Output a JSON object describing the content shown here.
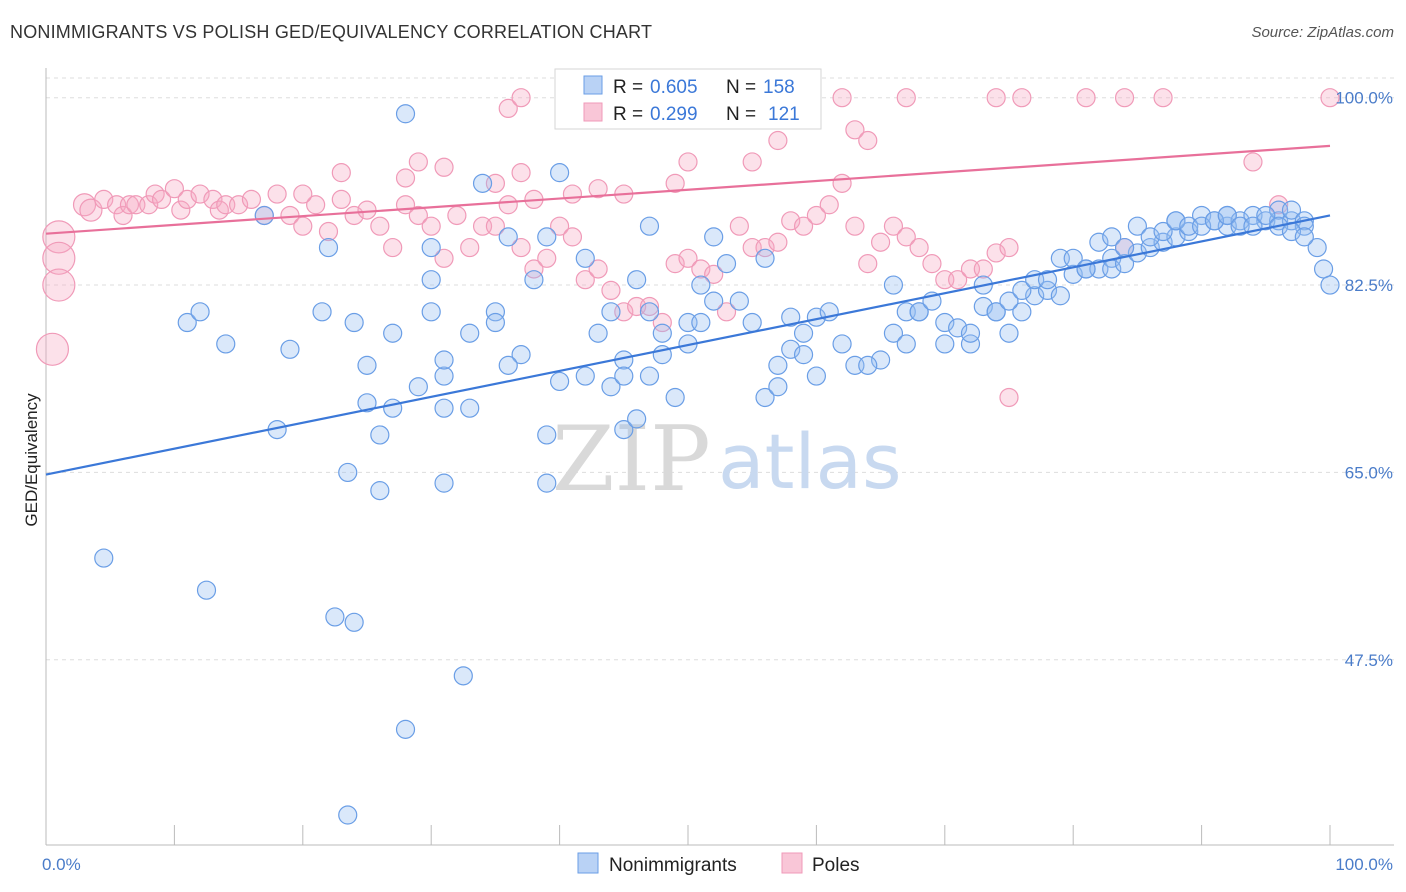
{
  "header": {
    "title": "NONIMMIGRANTS VS POLISH GED/EQUIVALENCY CORRELATION CHART",
    "source": "Source: ZipAtlas.com"
  },
  "watermark": {
    "zip": "ZIP",
    "atlas": "atlas"
  },
  "colors": {
    "blue": "#3b78d8",
    "blue_fill": "rgba(150,190,240,0.35)",
    "blue_stroke": "#6a9ee6",
    "pink": "#e8709a",
    "pink_fill": "rgba(245,170,195,0.35)",
    "pink_stroke": "#f09ab8",
    "grid": "#dddddd"
  },
  "legend_top": {
    "rows": [
      {
        "r_label": "R =",
        "r_value": "0.605",
        "n_label": "N =",
        "n_value": "158"
      },
      {
        "r_label": "R =",
        "r_value": "0.299",
        "n_label": "N =",
        "n_value": "121"
      }
    ]
  },
  "legend_bottom": {
    "items": [
      "Nonimmigrants",
      "Poles"
    ]
  },
  "chart_data": {
    "type": "scatter",
    "xlabel": "",
    "ylabel": "GED/Equivalency",
    "xlim": [
      0,
      100
    ],
    "ylim": [
      30.2,
      102.4
    ],
    "x_tick_labels": [
      "0.0%",
      "100.0%"
    ],
    "y_ticks": [
      47.5,
      65.0,
      82.5,
      100.0
    ],
    "y_tick_labels": [
      "47.5%",
      "65.0%",
      "82.5%",
      "100.0%"
    ],
    "grid": true,
    "series": [
      {
        "name": "Nonimmigrants",
        "trend": [
          [
            0,
            64.8
          ],
          [
            100,
            89.0
          ]
        ],
        "points": [
          [
            28,
            98.5
          ],
          [
            34,
            92
          ],
          [
            40,
            93
          ],
          [
            22,
            86
          ],
          [
            11,
            79
          ],
          [
            19,
            76.5
          ],
          [
            25,
            75
          ],
          [
            27,
            78
          ],
          [
            30,
            80
          ],
          [
            30,
            83
          ],
          [
            31,
            71
          ],
          [
            31,
            74
          ],
          [
            33,
            71
          ],
          [
            27,
            71
          ],
          [
            26,
            68.5
          ],
          [
            25,
            71.5
          ],
          [
            23.5,
            65
          ],
          [
            26,
            63.3
          ],
          [
            31,
            64
          ],
          [
            39,
            68.5
          ],
          [
            40,
            73.5
          ],
          [
            42,
            74
          ],
          [
            44,
            73
          ],
          [
            45,
            75.5
          ],
          [
            47,
            80
          ],
          [
            48,
            78
          ],
          [
            50,
            79
          ],
          [
            51,
            82.5
          ],
          [
            53,
            84.5
          ],
          [
            54,
            81
          ],
          [
            57,
            75
          ],
          [
            58,
            79.5
          ],
          [
            60,
            79.5
          ],
          [
            62,
            77
          ],
          [
            65,
            75.5
          ],
          [
            66,
            82.5
          ],
          [
            67,
            80
          ],
          [
            68,
            80
          ],
          [
            70,
            77
          ],
          [
            70,
            79
          ],
          [
            72,
            77
          ],
          [
            73,
            80.5
          ],
          [
            74,
            80
          ],
          [
            75,
            78
          ],
          [
            76,
            80
          ],
          [
            77,
            81.5
          ],
          [
            78,
            82
          ],
          [
            79,
            81.5
          ],
          [
            80,
            83.5
          ],
          [
            81,
            84
          ],
          [
            82,
            84
          ],
          [
            83,
            85
          ],
          [
            83,
            84
          ],
          [
            84,
            84.5
          ],
          [
            85,
            85.5
          ],
          [
            86,
            86
          ],
          [
            87,
            86.5
          ],
          [
            88,
            87
          ],
          [
            88,
            88.5
          ],
          [
            89,
            87.5
          ],
          [
            90,
            89
          ],
          [
            91,
            88.5
          ],
          [
            92,
            88
          ],
          [
            92,
            89
          ],
          [
            93,
            88.5
          ],
          [
            94,
            89
          ],
          [
            95,
            88.5
          ],
          [
            96,
            88.5
          ],
          [
            96,
            89.5
          ],
          [
            97,
            88.5
          ],
          [
            97,
            89.5
          ],
          [
            98,
            88.5
          ],
          [
            98,
            88
          ],
          [
            99,
            86
          ],
          [
            99.5,
            84
          ],
          [
            100,
            82.5
          ],
          [
            17,
            89
          ],
          [
            12,
            80
          ],
          [
            38,
            83
          ],
          [
            35,
            80
          ],
          [
            37,
            76
          ],
          [
            39,
            87
          ],
          [
            42,
            85
          ],
          [
            43,
            78
          ],
          [
            45,
            74
          ],
          [
            46,
            83
          ],
          [
            47,
            88
          ],
          [
            48,
            76
          ],
          [
            49,
            72
          ],
          [
            50,
            77
          ],
          [
            51,
            79
          ],
          [
            52,
            81
          ],
          [
            55,
            79
          ],
          [
            56,
            85
          ],
          [
            58,
            76.5
          ],
          [
            59,
            76
          ],
          [
            60,
            74
          ],
          [
            61,
            80
          ],
          [
            63,
            75
          ],
          [
            64,
            75
          ],
          [
            66,
            78
          ],
          [
            67,
            77
          ],
          [
            68,
            80
          ],
          [
            69,
            81
          ],
          [
            71,
            78.5
          ],
          [
            72,
            78
          ],
          [
            73,
            82.5
          ],
          [
            74,
            80
          ],
          [
            75,
            81
          ],
          [
            76,
            82
          ],
          [
            77,
            83
          ],
          [
            78,
            83
          ],
          [
            79,
            85
          ],
          [
            80,
            85
          ],
          [
            81,
            84
          ],
          [
            82,
            86.5
          ],
          [
            83,
            87
          ],
          [
            84,
            86
          ],
          [
            85,
            88
          ],
          [
            86,
            87
          ],
          [
            87,
            87.5
          ],
          [
            88,
            88.5
          ],
          [
            89,
            88
          ],
          [
            90,
            88
          ],
          [
            91,
            88.5
          ],
          [
            92,
            89
          ],
          [
            93,
            88
          ],
          [
            94,
            88
          ],
          [
            95,
            89
          ],
          [
            96,
            88
          ],
          [
            97,
            87.5
          ],
          [
            98,
            87
          ],
          [
            4.5,
            57
          ],
          [
            12.5,
            54
          ],
          [
            22.5,
            51.5
          ],
          [
            24,
            51
          ],
          [
            32.5,
            46
          ],
          [
            28,
            41
          ],
          [
            23.5,
            33
          ],
          [
            39,
            64
          ],
          [
            45,
            69
          ],
          [
            47,
            74
          ],
          [
            33,
            78
          ],
          [
            36,
            75
          ],
          [
            44,
            80
          ],
          [
            30,
            86
          ],
          [
            36,
            87
          ],
          [
            29,
            73
          ],
          [
            31,
            75.5
          ],
          [
            35,
            79
          ],
          [
            46,
            70
          ],
          [
            52,
            87
          ],
          [
            56,
            72
          ],
          [
            57,
            73
          ],
          [
            59,
            78
          ],
          [
            24,
            79
          ],
          [
            21.5,
            80
          ],
          [
            18,
            69
          ],
          [
            14,
            77
          ]
        ]
      },
      {
        "name": "Poles",
        "trend": [
          [
            0,
            87.3
          ],
          [
            100,
            95.5
          ]
        ],
        "points": [
          [
            1,
            87
          ],
          [
            1,
            85
          ],
          [
            1,
            82.5
          ],
          [
            0.5,
            76.5
          ],
          [
            3,
            90
          ],
          [
            3.5,
            89.5
          ],
          [
            4.5,
            90.5
          ],
          [
            5.5,
            90
          ],
          [
            6,
            89
          ],
          [
            6.5,
            90
          ],
          [
            7,
            90
          ],
          [
            8,
            90
          ],
          [
            8.5,
            91
          ],
          [
            9,
            90.5
          ],
          [
            10,
            91.5
          ],
          [
            10.5,
            89.5
          ],
          [
            11,
            90.5
          ],
          [
            12,
            91
          ],
          [
            13,
            90.5
          ],
          [
            13.5,
            89.5
          ],
          [
            14,
            90
          ],
          [
            15,
            90
          ],
          [
            16,
            90.5
          ],
          [
            17,
            89
          ],
          [
            18,
            91
          ],
          [
            19,
            89
          ],
          [
            20,
            88
          ],
          [
            21,
            90
          ],
          [
            22,
            87.5
          ],
          [
            23,
            90.5
          ],
          [
            24,
            89
          ],
          [
            25,
            89.5
          ],
          [
            26,
            88
          ],
          [
            27,
            86
          ],
          [
            28,
            90
          ],
          [
            29,
            89
          ],
          [
            30,
            88
          ],
          [
            31,
            85
          ],
          [
            32,
            89
          ],
          [
            33,
            86
          ],
          [
            34,
            88
          ],
          [
            35,
            88
          ],
          [
            36,
            90
          ],
          [
            37,
            86
          ],
          [
            38,
            84
          ],
          [
            39,
            85
          ],
          [
            40,
            88
          ],
          [
            41,
            87
          ],
          [
            42,
            83
          ],
          [
            43,
            84
          ],
          [
            44,
            82
          ],
          [
            45,
            80
          ],
          [
            46,
            80.5
          ],
          [
            47,
            80.5
          ],
          [
            48,
            79
          ],
          [
            49,
            84.5
          ],
          [
            50,
            85
          ],
          [
            51,
            84
          ],
          [
            52,
            83.5
          ],
          [
            53,
            80
          ],
          [
            54,
            88
          ],
          [
            55,
            86
          ],
          [
            56,
            86
          ],
          [
            57,
            86.5
          ],
          [
            58,
            88.5
          ],
          [
            59,
            88
          ],
          [
            60,
            89
          ],
          [
            61,
            90
          ],
          [
            62,
            92
          ],
          [
            63,
            88
          ],
          [
            64,
            84.5
          ],
          [
            65,
            86.5
          ],
          [
            66,
            88
          ],
          [
            67,
            87
          ],
          [
            68,
            86
          ],
          [
            69,
            84.5
          ],
          [
            70,
            83
          ],
          [
            71,
            83
          ],
          [
            72,
            84
          ],
          [
            73,
            84
          ],
          [
            74,
            85.5
          ],
          [
            75,
            86
          ],
          [
            20,
            91
          ],
          [
            23,
            93
          ],
          [
            28,
            92.5
          ],
          [
            29,
            94
          ],
          [
            31,
            93.5
          ],
          [
            35,
            92
          ],
          [
            37,
            93
          ],
          [
            38,
            90.5
          ],
          [
            41,
            91
          ],
          [
            43,
            91.5
          ],
          [
            45,
            91
          ],
          [
            49,
            92
          ],
          [
            50,
            94
          ],
          [
            55,
            94
          ],
          [
            57,
            96
          ],
          [
            63,
            97
          ],
          [
            64,
            96
          ],
          [
            36,
            99
          ],
          [
            37,
            100
          ],
          [
            44,
            100
          ],
          [
            51,
            100
          ],
          [
            52,
            100
          ],
          [
            58,
            100
          ],
          [
            62,
            100
          ],
          [
            67,
            100
          ],
          [
            74,
            100
          ],
          [
            76,
            100
          ],
          [
            81,
            100
          ],
          [
            84,
            100
          ],
          [
            87,
            100
          ],
          [
            94,
            94
          ],
          [
            96,
            90
          ],
          [
            100,
            100
          ],
          [
            84,
            86
          ],
          [
            75,
            72
          ]
        ]
      }
    ]
  }
}
